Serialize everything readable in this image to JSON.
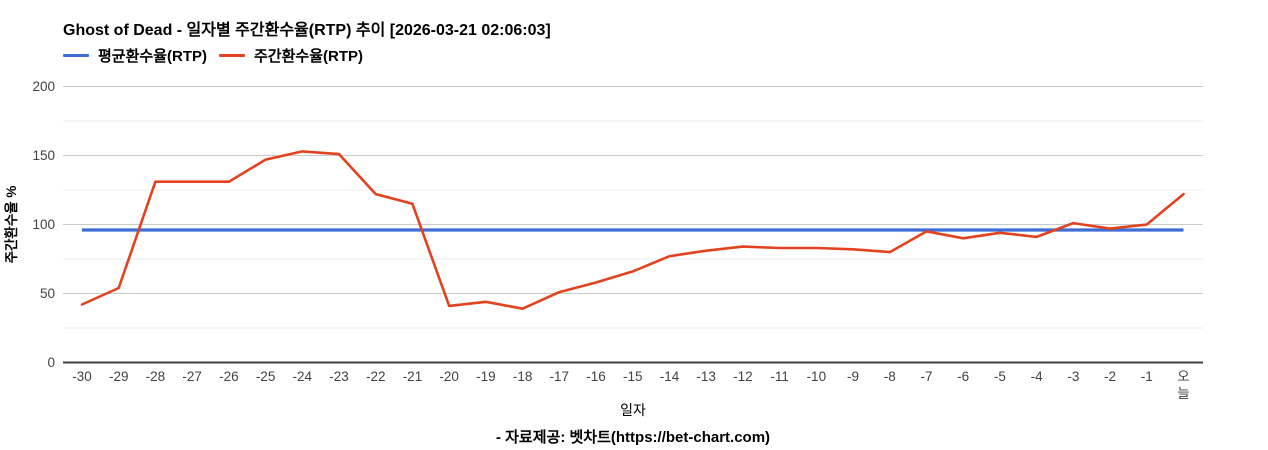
{
  "header": {
    "title": "Ghost of Dead - 일자별 주간환수율(RTP) 추이 [2026-03-21 02:06:03]"
  },
  "legend": {
    "items": [
      {
        "label": "평균환수율(RTP)",
        "color": "#3e6dd6"
      },
      {
        "label": "주간환수율(RTP)",
        "color": "#e2431e"
      }
    ]
  },
  "chart_data": {
    "type": "line",
    "title": "Ghost of Dead - 일자별 주간환수율(RTP) 추이 [2026-03-21 02:06:03]",
    "xlabel": "일자",
    "ylabel": "주간환수율 %",
    "categories": [
      "-30",
      "-29",
      "-28",
      "-27",
      "-26",
      "-25",
      "-24",
      "-23",
      "-22",
      "-21",
      "-20",
      "-19",
      "-18",
      "-17",
      "-16",
      "-15",
      "-14",
      "-13",
      "-12",
      "-11",
      "-10",
      "-9",
      "-8",
      "-7",
      "-6",
      "-5",
      "-4",
      "-3",
      "-2",
      "-1",
      "오늘"
    ],
    "series": [
      {
        "name": "평균환수율(RTP)",
        "color": "#3e6dd6",
        "constant_value": 96
      },
      {
        "name": "주간환수율(RTP)",
        "color": "#e2431e",
        "values": [
          42,
          54,
          131,
          131,
          131,
          147,
          153,
          151,
          122,
          115,
          41,
          44,
          39,
          51,
          58,
          66,
          77,
          81,
          84,
          83,
          83,
          82,
          80,
          95,
          90,
          94,
          91,
          101,
          97,
          100,
          122
        ]
      }
    ],
    "ylim": [
      0,
      200
    ],
    "yticks": [
      0,
      50,
      100,
      150,
      200
    ],
    "yticks_minor": [
      25,
      75,
      125,
      175
    ],
    "grid": true,
    "legend_position": "top",
    "colors": {
      "major_grid": "#c9c9c9",
      "minor_grid": "#ececec",
      "baseline": "#424242",
      "tick_label": "#424242",
      "axis_title": "#000000"
    }
  },
  "footer": {
    "source_text": "- 자료제공: 벳차트(https://bet-chart.com)"
  }
}
